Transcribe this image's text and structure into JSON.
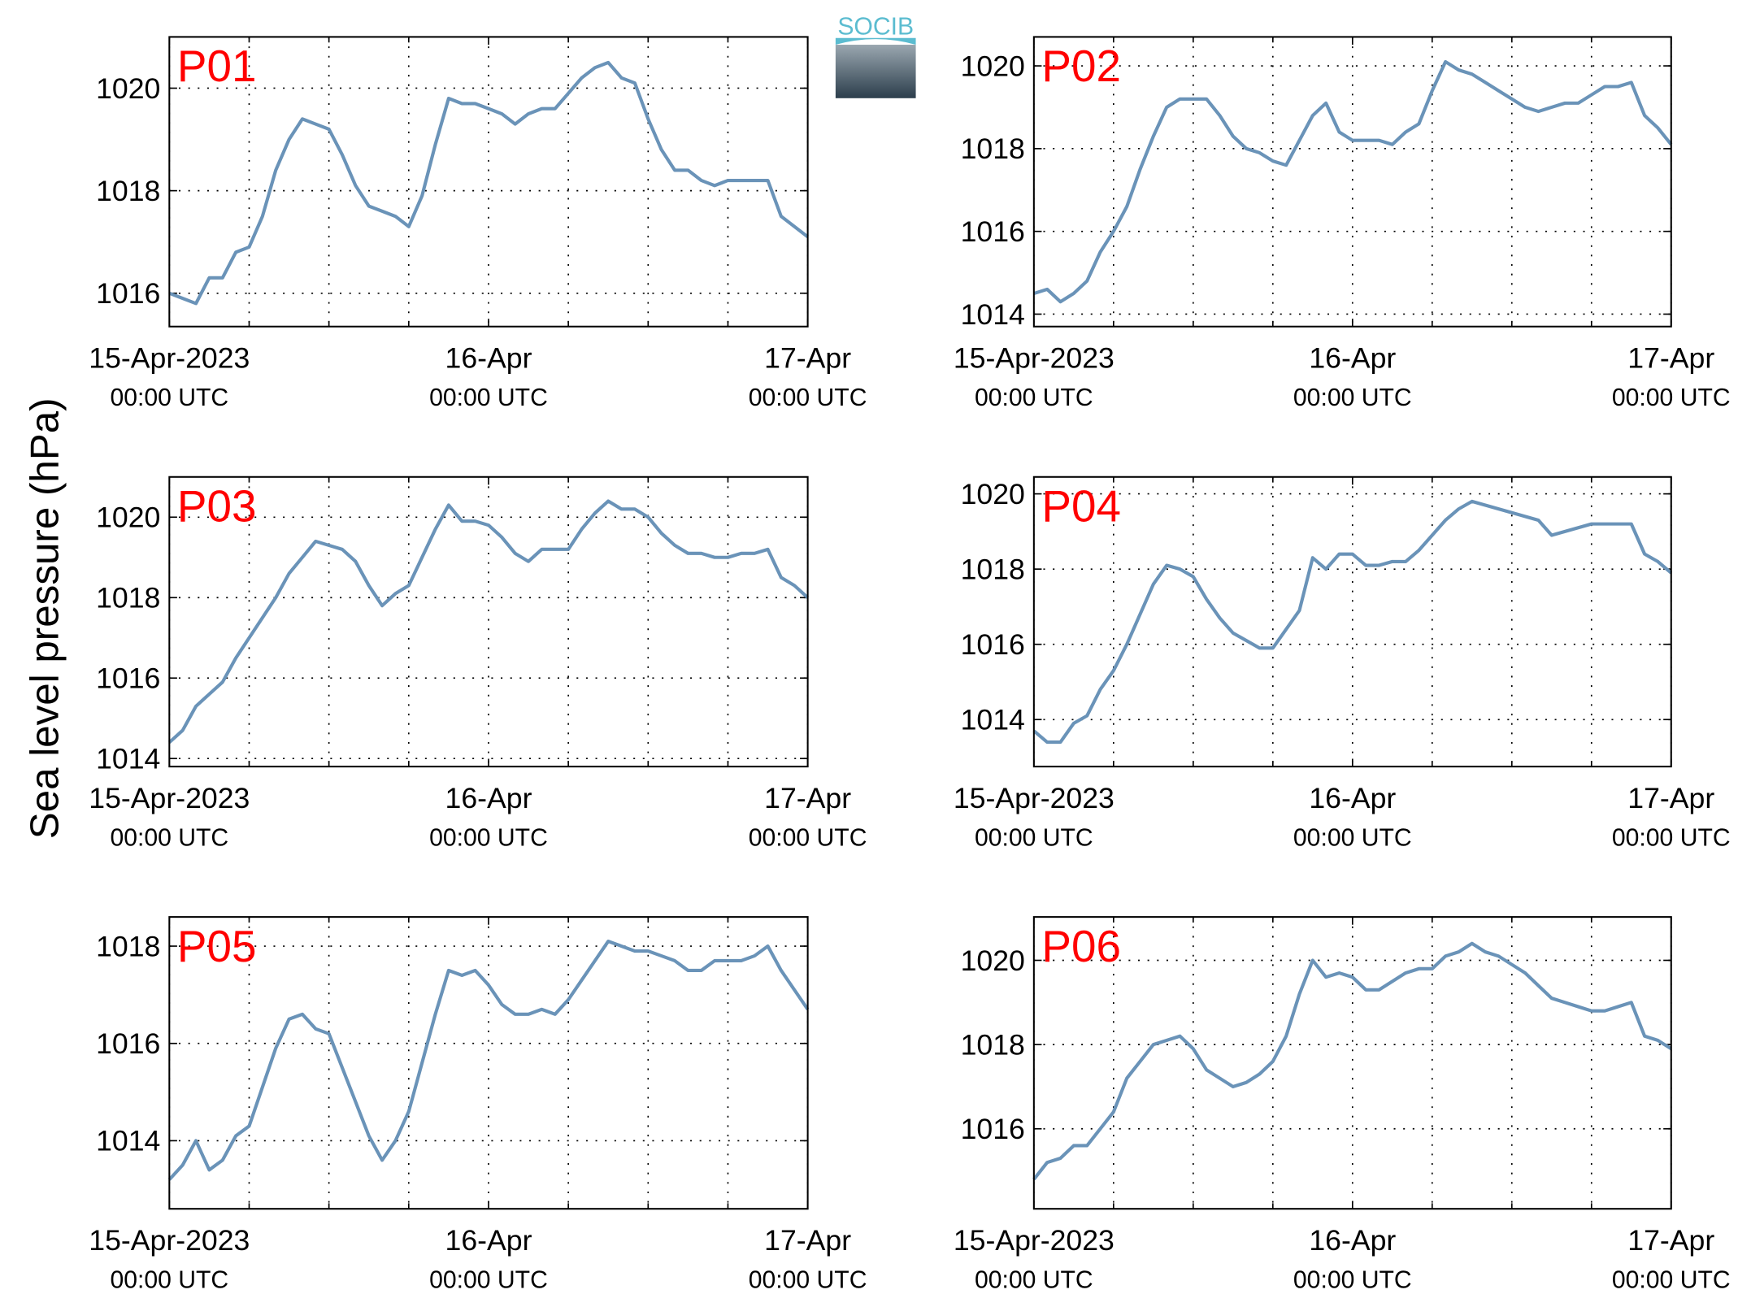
{
  "ylabel": "Sea level pressure (hPa)",
  "logo": "SOCIB",
  "chart_data": [
    {
      "type": "line",
      "title": "P01",
      "color": "#6a93b8",
      "grid": true,
      "x": [
        0,
        1,
        2,
        3,
        4,
        5,
        6,
        7,
        8,
        9,
        10,
        11,
        12,
        13,
        14,
        15,
        16,
        17,
        18,
        19,
        20,
        21,
        22,
        23,
        24,
        25,
        26,
        27,
        28,
        29,
        30,
        31,
        32,
        33,
        34,
        35,
        36,
        37,
        38,
        39,
        40,
        41,
        42,
        43,
        44,
        45,
        46,
        47,
        48
      ],
      "values": [
        1016.0,
        1015.9,
        1015.8,
        1016.3,
        1016.3,
        1016.8,
        1016.9,
        1017.5,
        1018.4,
        1019.0,
        1019.4,
        1019.3,
        1019.2,
        1018.7,
        1018.1,
        1017.7,
        1017.6,
        1017.5,
        1017.3,
        1017.9,
        1018.9,
        1019.8,
        1019.7,
        1019.7,
        1019.6,
        1019.5,
        1019.3,
        1019.5,
        1019.6,
        1019.6,
        1019.9,
        1020.2,
        1020.4,
        1020.5,
        1020.2,
        1020.1,
        1019.4,
        1018.8,
        1018.4,
        1018.4,
        1018.2,
        1018.1,
        1018.2,
        1018.2,
        1018.2,
        1018.2,
        1017.5,
        1017.3,
        1017.1
      ],
      "xlim": [
        0,
        48
      ],
      "xticks": [
        {
          "value": 0,
          "label": "15-Apr-2023\n00:00 UTC"
        },
        {
          "value": 24,
          "label": "16-Apr\n00:00 UTC"
        },
        {
          "value": 48,
          "label": "17-Apr\n00:00 UTC"
        }
      ],
      "xminor": [
        6,
        12,
        18,
        30,
        36,
        42
      ],
      "ylim": [
        1015.35,
        1021.0
      ],
      "yticks": [
        1016,
        1018,
        1020
      ]
    },
    {
      "type": "line",
      "title": "P02",
      "color": "#6a93b8",
      "grid": true,
      "x": [
        0,
        1,
        2,
        3,
        4,
        5,
        6,
        7,
        8,
        9,
        10,
        11,
        12,
        13,
        14,
        15,
        16,
        17,
        18,
        19,
        20,
        21,
        22,
        23,
        24,
        25,
        26,
        27,
        28,
        29,
        30,
        31,
        32,
        33,
        34,
        35,
        36,
        37,
        38,
        39,
        40,
        41,
        42,
        43,
        44,
        45,
        46,
        47,
        48
      ],
      "values": [
        1014.5,
        1014.6,
        1014.3,
        1014.5,
        1014.8,
        1015.5,
        1016.0,
        1016.6,
        1017.5,
        1018.3,
        1019.0,
        1019.2,
        1019.2,
        1019.2,
        1018.8,
        1018.3,
        1018.0,
        1017.9,
        1017.7,
        1017.6,
        1018.2,
        1018.8,
        1019.1,
        1018.4,
        1018.2,
        1018.2,
        1018.2,
        1018.1,
        1018.4,
        1018.6,
        1019.4,
        1020.1,
        1019.9,
        1019.8,
        1019.6,
        1019.4,
        1019.2,
        1019.0,
        1018.9,
        1019.0,
        1019.1,
        1019.1,
        1019.3,
        1019.5,
        1019.5,
        1019.6,
        1018.8,
        1018.5,
        1018.1
      ],
      "xlim": [
        0,
        48
      ],
      "xticks": [
        {
          "value": 0,
          "label": "15-Apr-2023\n00:00 UTC"
        },
        {
          "value": 24,
          "label": "16-Apr\n00:00 UTC"
        },
        {
          "value": 48,
          "label": "17-Apr\n00:00 UTC"
        }
      ],
      "xminor": [
        6,
        12,
        18,
        30,
        36,
        42
      ],
      "ylim": [
        1013.7,
        1020.7
      ],
      "yticks": [
        1014,
        1016,
        1018,
        1020
      ]
    },
    {
      "type": "line",
      "title": "P03",
      "color": "#6a93b8",
      "grid": true,
      "x": [
        0,
        1,
        2,
        3,
        4,
        5,
        6,
        7,
        8,
        9,
        10,
        11,
        12,
        13,
        14,
        15,
        16,
        17,
        18,
        19,
        20,
        21,
        22,
        23,
        24,
        25,
        26,
        27,
        28,
        29,
        30,
        31,
        32,
        33,
        34,
        35,
        36,
        37,
        38,
        39,
        40,
        41,
        42,
        43,
        44,
        45,
        46,
        47,
        48
      ],
      "values": [
        1014.4,
        1014.7,
        1015.3,
        1015.6,
        1015.9,
        1016.5,
        1017.0,
        1017.5,
        1018.0,
        1018.6,
        1019.0,
        1019.4,
        1019.3,
        1019.2,
        1018.9,
        1018.3,
        1017.8,
        1018.1,
        1018.3,
        1019.0,
        1019.7,
        1020.3,
        1019.9,
        1019.9,
        1019.8,
        1019.5,
        1019.1,
        1018.9,
        1019.2,
        1019.2,
        1019.2,
        1019.7,
        1020.1,
        1020.4,
        1020.2,
        1020.2,
        1020.0,
        1019.6,
        1019.3,
        1019.1,
        1019.1,
        1019.0,
        1019.0,
        1019.1,
        1019.1,
        1019.2,
        1018.5,
        1018.3,
        1018.0
      ],
      "xlim": [
        0,
        48
      ],
      "xticks": [
        {
          "value": 0,
          "label": "15-Apr-2023\n00:00 UTC"
        },
        {
          "value": 24,
          "label": "16-Apr\n00:00 UTC"
        },
        {
          "value": 48,
          "label": "17-Apr\n00:00 UTC"
        }
      ],
      "xminor": [
        6,
        12,
        18,
        30,
        36,
        42
      ],
      "ylim": [
        1013.8,
        1021.0
      ],
      "yticks": [
        1014,
        1016,
        1018,
        1020
      ]
    },
    {
      "type": "line",
      "title": "P04",
      "color": "#6a93b8",
      "grid": true,
      "x": [
        0,
        1,
        2,
        3,
        4,
        5,
        6,
        7,
        8,
        9,
        10,
        11,
        12,
        13,
        14,
        15,
        16,
        17,
        18,
        19,
        20,
        21,
        22,
        23,
        24,
        25,
        26,
        27,
        28,
        29,
        30,
        31,
        32,
        33,
        34,
        35,
        36,
        37,
        38,
        39,
        40,
        41,
        42,
        43,
        44,
        45,
        46,
        47,
        48
      ],
      "values": [
        1013.7,
        1013.4,
        1013.4,
        1013.9,
        1014.1,
        1014.8,
        1015.3,
        1016.0,
        1016.8,
        1017.6,
        1018.1,
        1018.0,
        1017.8,
        1017.2,
        1016.7,
        1016.3,
        1016.1,
        1015.9,
        1015.9,
        1016.4,
        1016.9,
        1018.3,
        1018.0,
        1018.4,
        1018.4,
        1018.1,
        1018.1,
        1018.2,
        1018.2,
        1018.5,
        1018.9,
        1019.3,
        1019.6,
        1019.8,
        1019.7,
        1019.6,
        1019.5,
        1019.4,
        1019.3,
        1018.9,
        1019.0,
        1019.1,
        1019.2,
        1019.2,
        1019.2,
        1019.2,
        1018.4,
        1018.2,
        1017.9
      ],
      "xlim": [
        0,
        48
      ],
      "xticks": [
        {
          "value": 0,
          "label": "15-Apr-2023\n00:00 UTC"
        },
        {
          "value": 24,
          "label": "16-Apr\n00:00 UTC"
        },
        {
          "value": 48,
          "label": "17-Apr\n00:00 UTC"
        }
      ],
      "xminor": [
        6,
        12,
        18,
        30,
        36,
        42
      ],
      "ylim": [
        1012.75,
        1020.45
      ],
      "yticks": [
        1014,
        1016,
        1018,
        1020
      ]
    },
    {
      "type": "line",
      "title": "P05",
      "color": "#6a93b8",
      "grid": true,
      "x": [
        0,
        1,
        2,
        3,
        4,
        5,
        6,
        7,
        8,
        9,
        10,
        11,
        12,
        13,
        14,
        15,
        16,
        17,
        18,
        19,
        20,
        21,
        22,
        23,
        24,
        25,
        26,
        27,
        28,
        29,
        30,
        31,
        32,
        33,
        34,
        35,
        36,
        37,
        38,
        39,
        40,
        41,
        42,
        43,
        44,
        45,
        46,
        47,
        48
      ],
      "values": [
        1013.2,
        1013.5,
        1014.0,
        1013.4,
        1013.6,
        1014.1,
        1014.3,
        1015.1,
        1015.9,
        1016.5,
        1016.6,
        1016.3,
        1016.2,
        1015.5,
        1014.8,
        1014.1,
        1013.6,
        1014.0,
        1014.6,
        1015.6,
        1016.6,
        1017.5,
        1017.4,
        1017.5,
        1017.2,
        1016.8,
        1016.6,
        1016.6,
        1016.7,
        1016.6,
        1016.9,
        1017.3,
        1017.7,
        1018.1,
        1018.0,
        1017.9,
        1017.9,
        1017.8,
        1017.7,
        1017.5,
        1017.5,
        1017.7,
        1017.7,
        1017.7,
        1017.8,
        1018.0,
        1017.5,
        1017.1,
        1016.7
      ],
      "xlim": [
        0,
        48
      ],
      "xticks": [
        {
          "value": 0,
          "label": "15-Apr-2023\n00:00 UTC"
        },
        {
          "value": 24,
          "label": "16-Apr\n00:00 UTC"
        },
        {
          "value": 48,
          "label": "17-Apr\n00:00 UTC"
        }
      ],
      "xminor": [
        6,
        12,
        18,
        30,
        36,
        42
      ],
      "ylim": [
        1012.6,
        1018.6
      ],
      "yticks": [
        1014,
        1016,
        1018
      ]
    },
    {
      "type": "line",
      "title": "P06",
      "color": "#6a93b8",
      "grid": true,
      "x": [
        0,
        1,
        2,
        3,
        4,
        5,
        6,
        7,
        8,
        9,
        10,
        11,
        12,
        13,
        14,
        15,
        16,
        17,
        18,
        19,
        20,
        21,
        22,
        23,
        24,
        25,
        26,
        27,
        28,
        29,
        30,
        31,
        32,
        33,
        34,
        35,
        36,
        37,
        38,
        39,
        40,
        41,
        42,
        43,
        44,
        45,
        46,
        47,
        48
      ],
      "values": [
        1014.8,
        1015.2,
        1015.3,
        1015.6,
        1015.6,
        1016.0,
        1016.4,
        1017.2,
        1017.6,
        1018.0,
        1018.1,
        1018.2,
        1017.9,
        1017.4,
        1017.2,
        1017.0,
        1017.1,
        1017.3,
        1017.6,
        1018.2,
        1019.2,
        1020.0,
        1019.6,
        1019.7,
        1019.6,
        1019.3,
        1019.3,
        1019.5,
        1019.7,
        1019.8,
        1019.8,
        1020.1,
        1020.2,
        1020.4,
        1020.2,
        1020.1,
        1019.9,
        1019.7,
        1019.4,
        1019.1,
        1019.0,
        1018.9,
        1018.8,
        1018.8,
        1018.9,
        1019.0,
        1018.2,
        1018.1,
        1017.9
      ],
      "xlim": [
        0,
        48
      ],
      "xticks": [
        {
          "value": 0,
          "label": "15-Apr-2023\n00:00 UTC"
        },
        {
          "value": 24,
          "label": "16-Apr\n00:00 UTC"
        },
        {
          "value": 48,
          "label": "17-Apr\n00:00 UTC"
        }
      ],
      "xminor": [
        6,
        12,
        18,
        30,
        36,
        42
      ],
      "ylim": [
        1014.1,
        1021.03
      ],
      "yticks": [
        1016,
        1018,
        1020
      ]
    }
  ]
}
